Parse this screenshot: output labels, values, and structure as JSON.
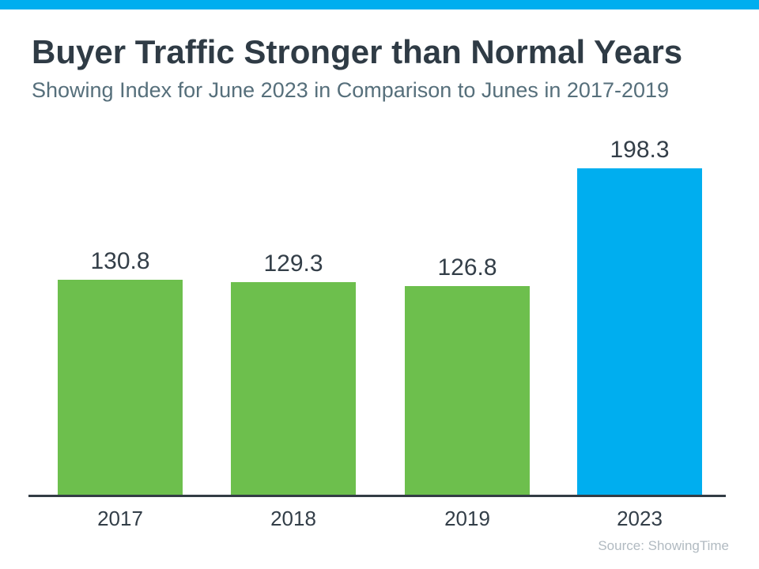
{
  "header": {
    "title": "Buyer Traffic Stronger than Normal Years",
    "subtitle": "Showing Index for June 2023 in Comparison to Junes in 2017-2019"
  },
  "chart_data": {
    "type": "bar",
    "title": "Buyer Traffic Stronger than Normal Years",
    "subtitle": "Showing Index for June 2023 in Comparison to Junes in 2017-2019",
    "categories": [
      "2017",
      "2018",
      "2019",
      "2023"
    ],
    "values": [
      130.8,
      129.3,
      126.8,
      198.3
    ],
    "value_labels": [
      "130.8",
      "129.3",
      "126.8",
      "198.3"
    ],
    "bar_colors": [
      "#6DBF4D",
      "#6DBF4D",
      "#6DBF4D",
      "#00AEEF"
    ],
    "xlabel": "",
    "ylabel": "",
    "ylim": [
      0,
      210
    ],
    "grid": false,
    "legend": false,
    "y_axis_visible": false,
    "x_axis_visible": true
  },
  "colors": {
    "accent_strip": "#00AEEF",
    "green_bar": "#6DBF4D",
    "blue_bar": "#00AEEF",
    "title_text": "#2F3B45",
    "subtitle_text": "#566F7B",
    "label_text": "#333E48",
    "axis_line": "#333C44",
    "source_text": "#B1BAC1",
    "background": "#FFFFFF"
  },
  "footer": {
    "source": "Source: ShowingTime"
  }
}
